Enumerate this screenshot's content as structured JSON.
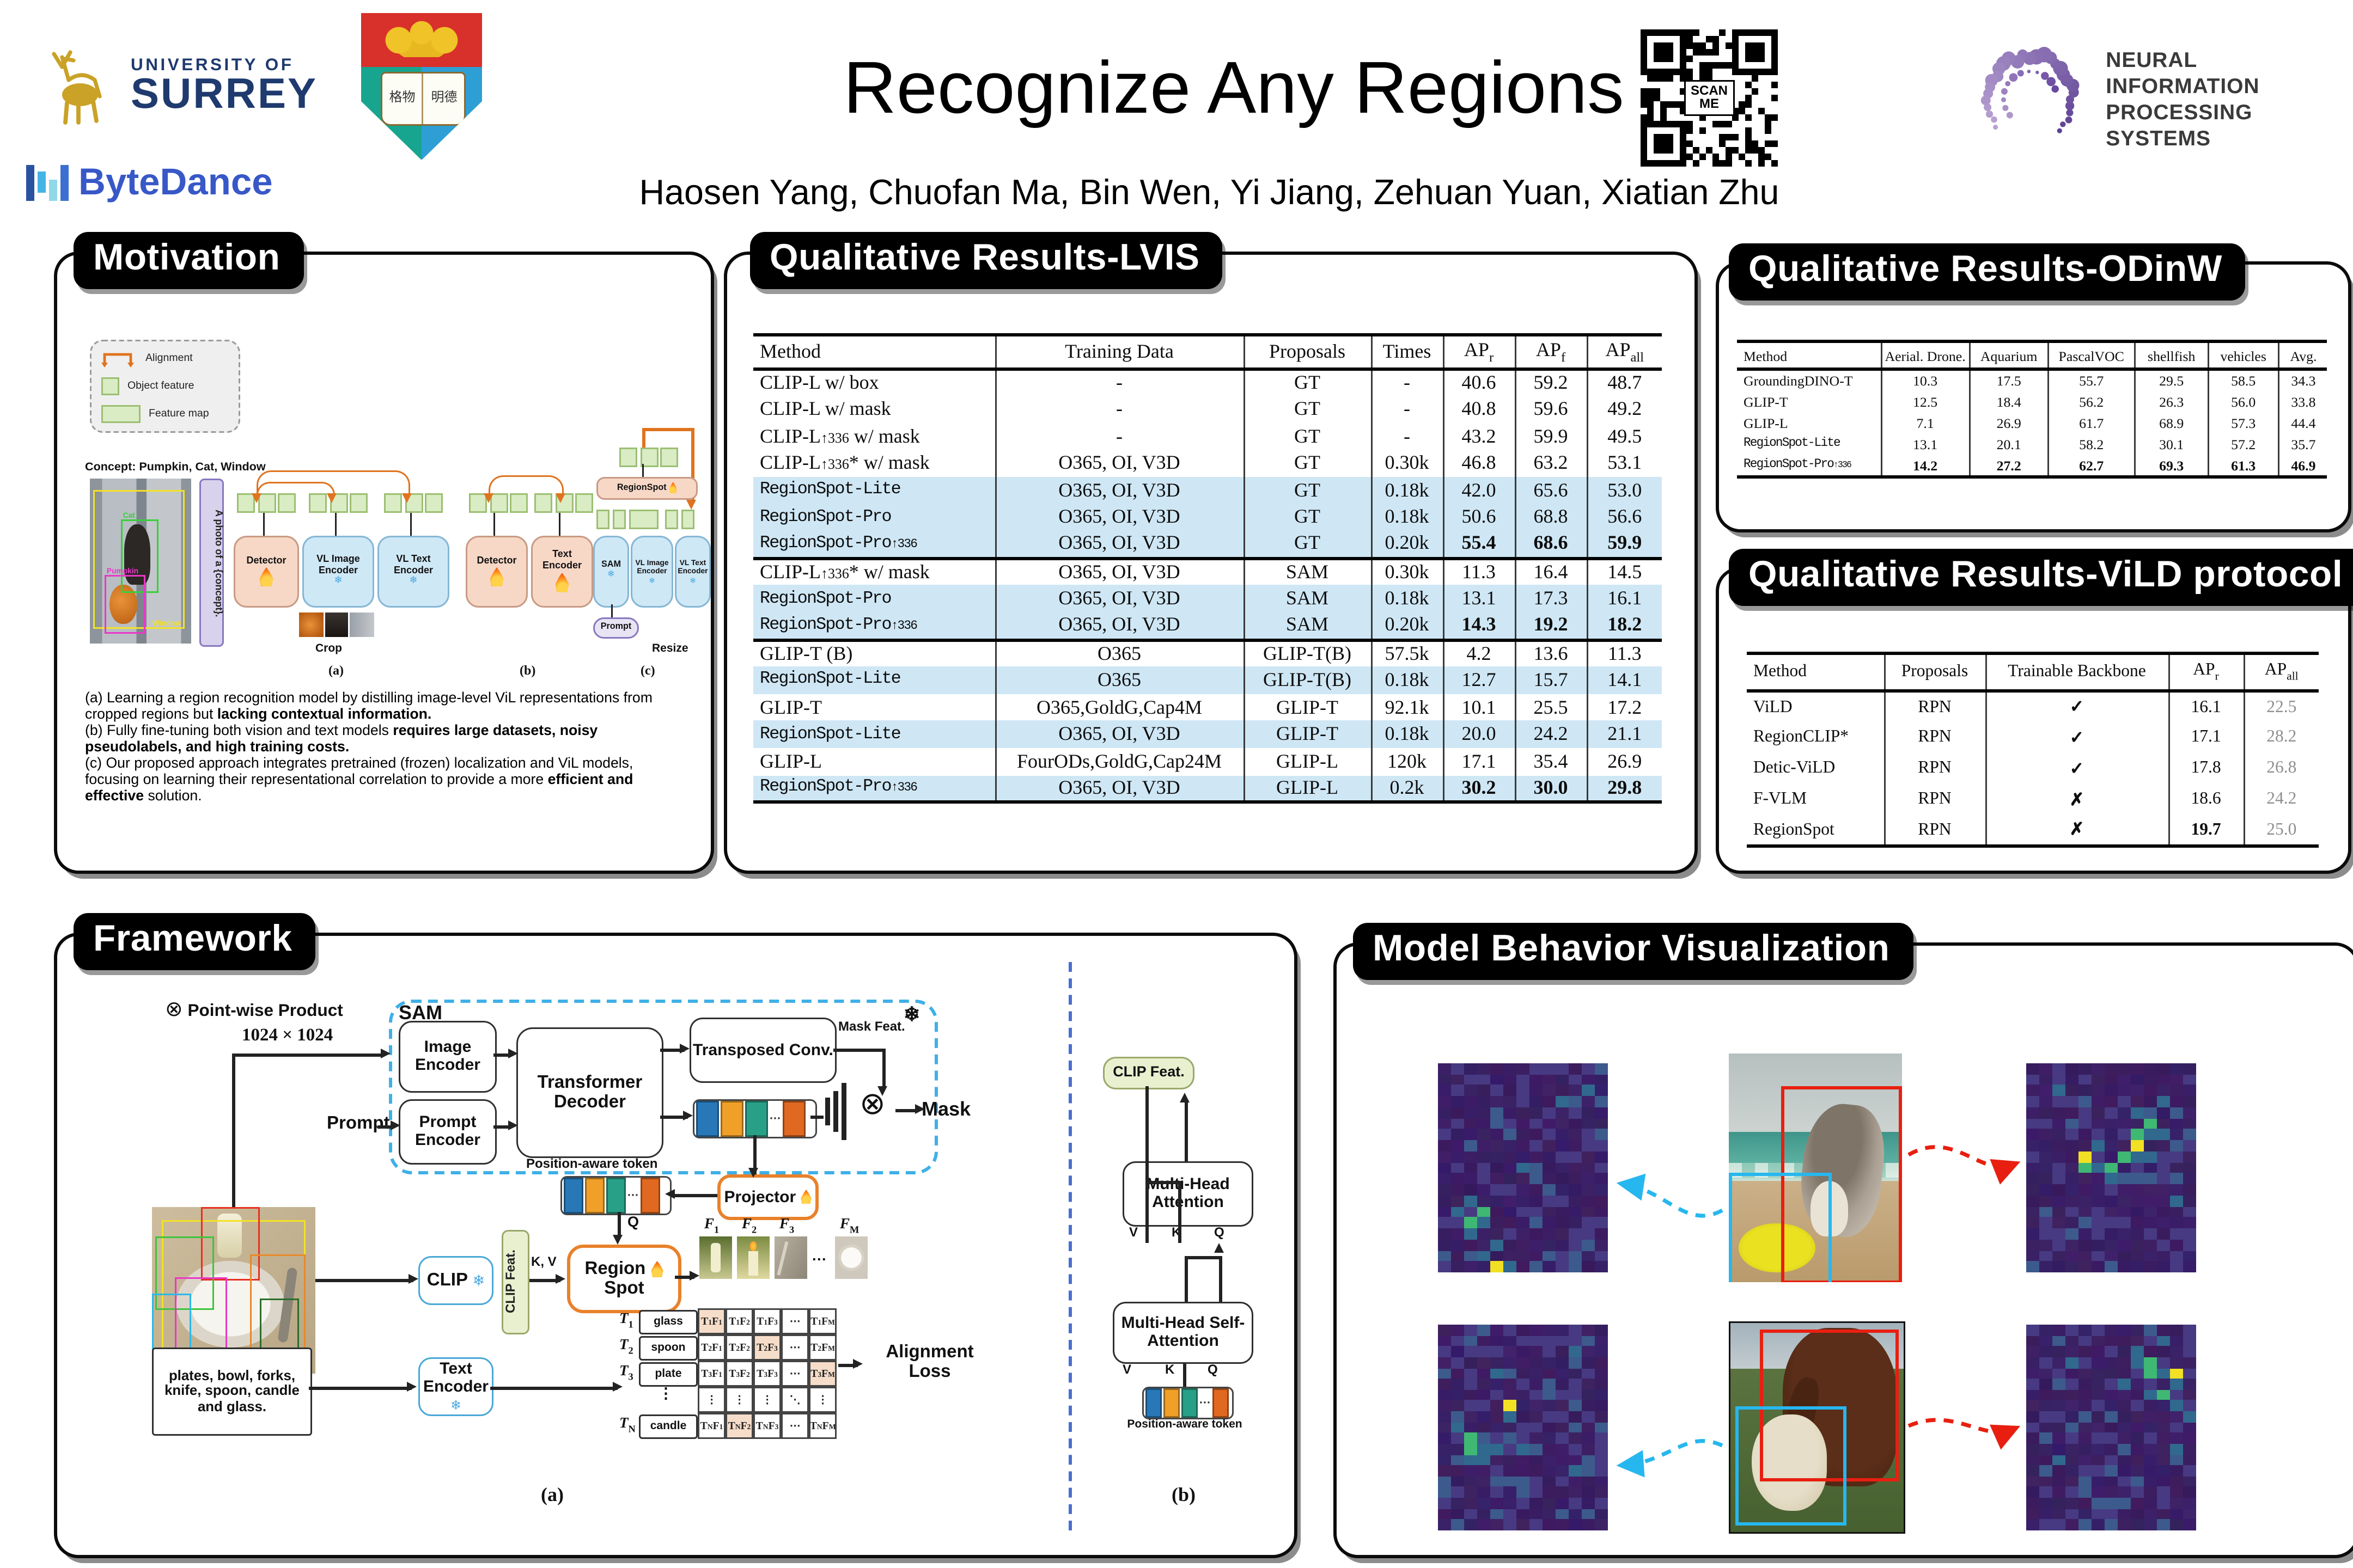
{
  "header": {
    "title": "Recognize Any Regions",
    "authors": "Haosen Yang, Chuofan Ma, Bin Wen, Yi Jiang, Zehuan Yuan, Xiatian Zhu",
    "logos": {
      "surrey_line1": "UNIVERSITY OF",
      "surrey_line2": "SURREY",
      "hku_page_left": "格物",
      "hku_page_right": "明德",
      "bytedance": "ByteDance",
      "qr_label": "SCAN ME",
      "neurips_line1": "NEURAL INFORMATION",
      "neurips_line2": "PROCESSING SYSTEMS"
    }
  },
  "motivation": {
    "title": "Motivation",
    "legend": {
      "alignment": "Alignment",
      "object_feature": "Object feature",
      "feature_map": "Feature map"
    },
    "concept_label": "Concept: Pumpkin, Cat, Window",
    "photo_labels": {
      "window": "Window",
      "cat": "Cat",
      "pumpkin": "Pumpkin"
    },
    "prompt_vertical": "A photo of a {concept}.",
    "blocks": {
      "detector": "Detector",
      "vl_image_encoder": "VL Image Encoder",
      "vl_text_encoder": "VL Text Encoder",
      "text_encoder": "Text Encoder",
      "sam": "SAM",
      "regionspot": "RegionSpot",
      "prompt": "Prompt"
    },
    "crop_label": "Crop",
    "resize_label": "Resize",
    "sub_a": "(a)",
    "sub_b": "(b)",
    "sub_c": "(c)",
    "caption": [
      {
        "runs": [
          {
            "t": "(a) Learning a region recognition model by distilling image-level ViL representations from cropped regions but "
          },
          {
            "t": "lacking contextual information.",
            "b": true
          }
        ]
      },
      {
        "runs": [
          {
            "t": "(b) Fully fine-tuning both vision and text models "
          },
          {
            "t": "requires large datasets, noisy pseudolabels, and high training costs.",
            "b": true
          }
        ]
      },
      {
        "runs": [
          {
            "t": "(c) Our proposed approach integrates pretrained (frozen) localization and ViL models, focusing on learning their representational correlation to provide a more "
          },
          {
            "t": "efficient and effective",
            "b": true
          },
          {
            "t": " solution."
          }
        ]
      }
    ]
  },
  "lvis": {
    "title": "Qualitative Results-LVIS",
    "columns": [
      "Method",
      "Training Data",
      "Proposals",
      "Times",
      "AP_r",
      "AP_f",
      "AP_all"
    ],
    "widths": [
      148,
      152,
      78,
      44,
      44,
      44,
      46
    ],
    "rows": [
      {
        "m": "CLIP-L w/ box",
        "d": "-",
        "p": "GT",
        "t": "-",
        "r": "40.6",
        "f": "59.2",
        "a": "48.7"
      },
      {
        "m": "CLIP-L w/ mask",
        "d": "-",
        "p": "GT",
        "t": "-",
        "r": "40.8",
        "f": "59.6",
        "a": "49.2"
      },
      {
        "m": "CLIP-L↑336 w/ mask",
        "d": "-",
        "p": "GT",
        "t": "-",
        "r": "43.2",
        "f": "59.9",
        "a": "49.5"
      },
      {
        "m": "CLIP-L↑336* w/ mask",
        "d": "O365, OI, V3D",
        "p": "GT",
        "t": "0.30k",
        "r": "46.8",
        "f": "63.2",
        "a": "53.1"
      },
      {
        "m": "RegionSpot-Lite",
        "mono": true,
        "hl": true,
        "d": "O365, OI, V3D",
        "p": "GT",
        "t": "0.18k",
        "r": "42.0",
        "f": "65.6",
        "a": "53.0"
      },
      {
        "m": "RegionSpot-Pro",
        "mono": true,
        "hl": true,
        "d": "O365, OI, V3D",
        "p": "GT",
        "t": "0.18k",
        "r": "50.6",
        "f": "68.8",
        "a": "56.6"
      },
      {
        "m": "RegionSpot-Pro↑336",
        "mono": true,
        "hl": true,
        "bold": true,
        "d": "O365, OI, V3D",
        "p": "GT",
        "t": "0.20k",
        "r": "55.4",
        "f": "68.6",
        "a": "59.9"
      },
      {
        "m": "CLIP-L↑336* w/ mask",
        "sep": true,
        "d": "O365, OI, V3D",
        "p": "SAM",
        "t": "0.30k",
        "r": "11.3",
        "f": "16.4",
        "a": "14.5"
      },
      {
        "m": "RegionSpot-Pro",
        "mono": true,
        "hl": true,
        "d": "O365, OI, V3D",
        "p": "SAM",
        "t": "0.18k",
        "r": "13.1",
        "f": "17.3",
        "a": "16.1"
      },
      {
        "m": "RegionSpot-Pro↑336",
        "mono": true,
        "hl": true,
        "bold": true,
        "d": "O365, OI, V3D",
        "p": "SAM",
        "t": "0.20k",
        "r": "14.3",
        "f": "19.2",
        "a": "18.2"
      },
      {
        "m": "GLIP-T (B)",
        "sep": true,
        "d": "O365",
        "p": "GLIP-T(B)",
        "t": "57.5k",
        "r": "4.2",
        "f": "13.6",
        "a": "11.3"
      },
      {
        "m": "RegionSpot-Lite",
        "mono": true,
        "hl": true,
        "d": "O365",
        "p": "GLIP-T(B)",
        "t": "0.18k",
        "r": "12.7",
        "f": "15.7",
        "a": "14.1"
      },
      {
        "m": "GLIP-T",
        "d": "O365,GoldG,Cap4M",
        "p": "GLIP-T",
        "t": "92.1k",
        "r": "10.1",
        "f": "25.5",
        "a": "17.2"
      },
      {
        "m": "RegionSpot-Lite",
        "mono": true,
        "hl": true,
        "d": "O365, OI, V3D",
        "p": "GLIP-T",
        "t": "0.18k",
        "r": "20.0",
        "f": "24.2",
        "a": "21.1"
      },
      {
        "m": "GLIP-L",
        "d": "FourODs,GoldG,Cap24M",
        "p": "GLIP-L",
        "t": "120k",
        "r": "17.1",
        "f": "35.4",
        "a": "26.9"
      },
      {
        "m": "RegionSpot-Pro↑336",
        "mono": true,
        "hl": true,
        "bold": true,
        "d": "O365, OI, V3D",
        "p": "GLIP-L",
        "t": "0.2k",
        "r": "30.2",
        "f": "30.0",
        "a": "29.8"
      }
    ]
  },
  "odinw": {
    "title": "Qualitative Results-ODinW",
    "columns": [
      "Method",
      "Aerial. Drone.",
      "Aquarium",
      "PascalVOC",
      "shellfish",
      "vehicles",
      "Avg."
    ],
    "widths": [
      88,
      53,
      48,
      53,
      45,
      43,
      30
    ],
    "rows": [
      {
        "m": "GroundingDINO-T",
        "v": [
          "10.3",
          "17.5",
          "55.7",
          "29.5",
          "58.5",
          "34.3"
        ]
      },
      {
        "m": "GLIP-T",
        "v": [
          "12.5",
          "18.4",
          "56.2",
          "26.3",
          "56.0",
          "33.8"
        ]
      },
      {
        "m": "GLIP-L",
        "v": [
          "7.1",
          "26.9",
          "61.7",
          "68.9",
          "57.3",
          "44.4"
        ]
      },
      {
        "m": "RegionSpot-Lite",
        "mono": true,
        "v": [
          "13.1",
          "20.1",
          "58.2",
          "30.1",
          "57.2",
          "35.7"
        ]
      },
      {
        "m": "RegionSpot-Pro↑336",
        "mono": true,
        "bold": true,
        "v": [
          "14.2",
          "27.2",
          "62.7",
          "69.3",
          "61.3",
          "46.9"
        ]
      }
    ]
  },
  "vild": {
    "title": "Qualitative Results-ViLD protocol",
    "columns": [
      "Method",
      "Proposals",
      "Trainable Backbone",
      "AP_r",
      "AP_all"
    ],
    "widths": [
      84,
      62,
      112,
      46,
      46
    ],
    "rows": [
      {
        "m": "ViLD",
        "p": "RPN",
        "b": "✓",
        "r": "16.1",
        "a": "22.5"
      },
      {
        "m": "RegionCLIP*",
        "p": "RPN",
        "b": "✓",
        "r": "17.1",
        "a": "28.2"
      },
      {
        "m": "Detic-ViLD",
        "p": "RPN",
        "b": "✓",
        "r": "17.8",
        "a": "26.8"
      },
      {
        "m": "F-VLM",
        "p": "RPN",
        "b": "✗",
        "r": "18.6",
        "a": "24.2"
      },
      {
        "m": "RegionSpot",
        "p": "RPN",
        "b": "✗",
        "r": "19.7",
        "boldr": true,
        "a": "25.0"
      }
    ]
  },
  "framework": {
    "title": "Framework",
    "pointwise": "Point-wise Product",
    "input_size": "1024 × 1024",
    "prompt": "Prompt",
    "sam": "SAM",
    "image_encoder": "Image Encoder",
    "prompt_encoder": "Prompt Encoder",
    "transformer_decoder": "Transformer Decoder",
    "transposed_conv": "Transposed Conv.",
    "mask_feat": "Mask Feat.",
    "mask": "Mask",
    "position_token": "Position-aware token",
    "projector": "Projector",
    "clip": "CLIP",
    "clip_feat": "CLIP Feat.",
    "kv": "K, V",
    "q": "Q",
    "region_spot": "Region Spot",
    "text_encoder": "Text Encoder",
    "text_input": "plates, bowl, forks, knife, spoon, candle and glass.",
    "f_labels": [
      "1",
      "2",
      "3",
      "M"
    ],
    "t_rows": [
      {
        "i": "1",
        "w": "glass"
      },
      {
        "i": "2",
        "w": "spoon"
      },
      {
        "i": "3",
        "w": "plate"
      },
      {
        "i": "dots"
      },
      {
        "i": "N",
        "w": "candle"
      }
    ],
    "matrix_rows": [
      [
        "1|1*",
        "1|2",
        "1|3",
        "dots",
        "1|M"
      ],
      [
        "2|1",
        "2|2",
        "2|3*",
        "dots",
        "2|M"
      ],
      [
        "3|1",
        "3|2",
        "3|3",
        "dots",
        "3|M*"
      ],
      [
        "v",
        "v",
        "v",
        "diag",
        "v"
      ],
      [
        "N|1",
        "N|2*",
        "N|3",
        "dots",
        "N|M"
      ]
    ],
    "alignment_loss": "Alignment Loss",
    "sub_a": "(a)",
    "sub_b": "(b)",
    "mha": "Multi-Head Attention",
    "mhsa": "Multi-Head Self-Attention",
    "v": "V",
    "k": "K",
    "qq": "Q",
    "position_token_b": "Position-aware token",
    "clip_feat_b": "CLIP Feat."
  },
  "behavior": {
    "title": "Model Behavior Visualization",
    "grid": {
      "cols": 13,
      "rows": 19
    },
    "heatmaps": [
      {
        "seed": 11,
        "hotspots": [
          [
            2,
            12,
            1
          ],
          [
            3,
            13,
            2
          ],
          [
            2,
            14,
            2
          ],
          [
            3,
            14,
            1
          ],
          [
            2,
            15,
            1
          ],
          [
            1,
            13,
            1
          ],
          [
            4,
            16,
            1
          ],
          [
            3,
            17,
            1
          ],
          [
            4,
            18,
            3
          ],
          [
            5,
            18,
            1
          ],
          [
            6,
            9,
            1
          ],
          [
            9,
            3,
            1
          ],
          [
            11,
            2,
            1
          ]
        ]
      },
      {
        "seed": 22,
        "hotspots": [
          [
            4,
            8,
            3
          ],
          [
            4,
            9,
            2
          ],
          [
            5,
            9,
            1
          ],
          [
            8,
            6,
            2
          ],
          [
            8,
            7,
            3
          ],
          [
            9,
            5,
            2
          ],
          [
            9,
            6,
            1
          ],
          [
            7,
            8,
            2
          ],
          [
            8,
            8,
            1
          ],
          [
            6,
            9,
            2
          ],
          [
            6,
            10,
            1
          ],
          [
            10,
            6,
            1
          ],
          [
            9,
            8,
            1
          ],
          [
            8,
            4,
            1
          ],
          [
            5,
            7,
            1
          ],
          [
            10,
            3,
            1
          ],
          [
            2,
            2,
            1
          ],
          [
            11,
            12,
            1
          ]
        ]
      },
      {
        "seed": 33,
        "hotspots": [
          [
            5,
            7,
            3
          ],
          [
            5,
            8,
            1
          ],
          [
            2,
            10,
            2
          ],
          [
            2,
            11,
            2
          ],
          [
            3,
            11,
            1
          ],
          [
            4,
            11,
            1
          ],
          [
            3,
            12,
            1
          ],
          [
            2,
            12,
            1
          ],
          [
            6,
            11,
            1
          ],
          [
            10,
            13,
            1
          ],
          [
            1,
            9,
            1
          ],
          [
            4,
            4,
            1
          ],
          [
            10,
            2,
            1
          ]
        ]
      },
      {
        "seed": 44,
        "hotspots": [
          [
            8,
            3,
            1
          ],
          [
            9,
            3,
            2
          ],
          [
            9,
            4,
            2
          ],
          [
            11,
            4,
            3
          ],
          [
            10,
            4,
            1
          ],
          [
            11,
            5,
            1
          ],
          [
            7,
            5,
            1
          ],
          [
            9,
            6,
            1
          ],
          [
            10,
            6,
            2
          ],
          [
            11,
            7,
            1
          ],
          [
            8,
            2,
            1
          ],
          [
            10,
            1,
            1
          ],
          [
            12,
            8,
            1
          ],
          [
            3,
            3,
            1
          ],
          [
            2,
            12,
            1
          ],
          [
            11,
            11,
            1
          ]
        ]
      }
    ],
    "colors": {
      "accent_red": "#e81f10",
      "accent_cyan": "#27b7ef",
      "hm_base": "#3a1d63",
      "hm_mid": "#31688e",
      "hm_green": "#3fb873",
      "hm_yellow": "#f2e024"
    }
  }
}
